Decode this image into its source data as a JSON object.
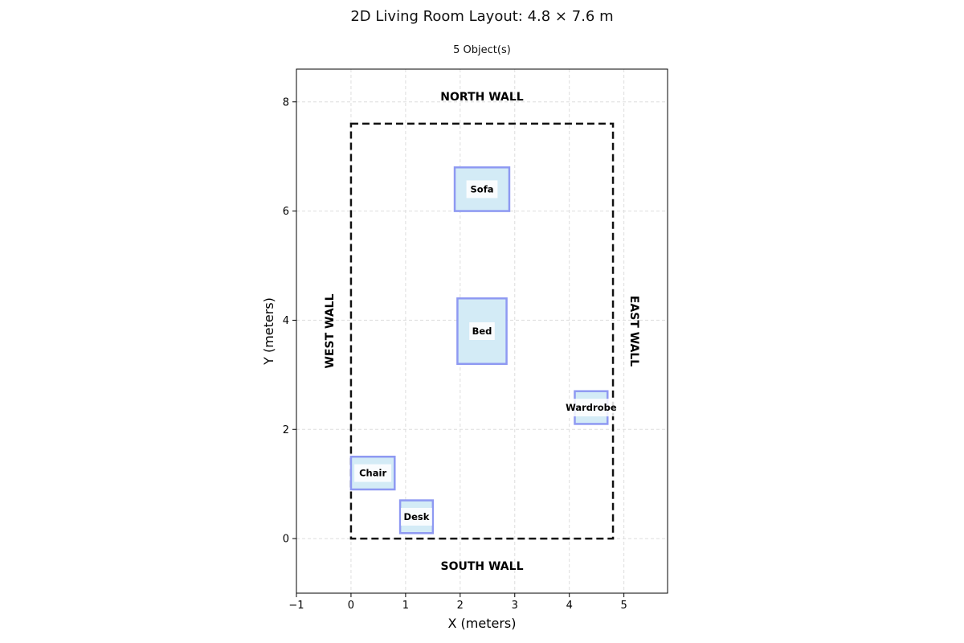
{
  "title": "2D Living Room Layout: 4.8 × 7.6 m",
  "subtitle": "5 Object(s)",
  "chart_data": {
    "type": "diagram",
    "xlabel": "X (meters)",
    "ylabel": "Y (meters)",
    "xlim": [
      -1,
      5.8
    ],
    "ylim": [
      -1,
      8.6
    ],
    "x_ticks": [
      -1,
      0,
      1,
      2,
      3,
      4,
      5
    ],
    "y_ticks": [
      0,
      2,
      4,
      6,
      8
    ],
    "x_tick_labels": [
      "−1",
      "0",
      "1",
      "2",
      "3",
      "4",
      "5"
    ],
    "y_tick_labels": [
      "0",
      "2",
      "4",
      "6",
      "8"
    ],
    "grid": true,
    "room": {
      "width": 4.8,
      "depth": 7.6
    },
    "walls": {
      "north": "NORTH WALL",
      "south": "SOUTH WALL",
      "west": "WEST WALL",
      "east": "EAST WALL"
    },
    "objects": [
      {
        "name": "Sofa",
        "x": 1.9,
        "y": 6.0,
        "w": 1.0,
        "h": 0.8
      },
      {
        "name": "Bed",
        "x": 1.95,
        "y": 3.2,
        "w": 0.9,
        "h": 1.2
      },
      {
        "name": "Wardrobe",
        "x": 4.1,
        "y": 2.1,
        "w": 0.6,
        "h": 0.6
      },
      {
        "name": "Chair",
        "x": 0.0,
        "y": 0.9,
        "w": 0.8,
        "h": 0.6
      },
      {
        "name": "Desk",
        "x": 0.9,
        "y": 0.1,
        "w": 0.6,
        "h": 0.6
      }
    ],
    "colors": {
      "object_fill": "#d3ebf6",
      "object_stroke": "#8e99f2",
      "room_border": "#111111",
      "grid": "#dddddd"
    }
  }
}
